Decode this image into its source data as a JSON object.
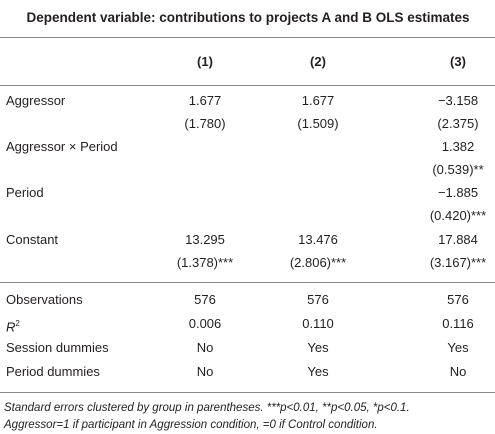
{
  "title": "Dependent variable: contributions to projects A and B OLS estimates",
  "columns": [
    "(1)",
    "(2)",
    "(3)"
  ],
  "estimates": [
    {
      "label": "Aggressor",
      "cells": [
        {
          "est": "1.677",
          "se": "(1.780)"
        },
        {
          "est": "1.677",
          "se": "(1.509)"
        },
        {
          "est": "−3.158",
          "se": "(2.375)"
        }
      ]
    },
    {
      "label": "Aggressor × Period",
      "cells": [
        null,
        null,
        {
          "est": "1.382",
          "se": "(0.539)**"
        }
      ]
    },
    {
      "label": "Period",
      "cells": [
        null,
        null,
        {
          "est": "−1.885",
          "se": "(0.420)***"
        }
      ]
    },
    {
      "label": "Constant",
      "cells": [
        {
          "est": "13.295",
          "se": "(1.378)***"
        },
        {
          "est": "13.476",
          "se": "(2.806)***"
        },
        {
          "est": "17.884",
          "se": "(3.167)***"
        }
      ]
    }
  ],
  "stats": [
    {
      "label": "Observations",
      "cells": [
        "576",
        "576",
        "576"
      ]
    },
    {
      "label": "R",
      "sup": "2",
      "cells": [
        "0.006",
        "0.110",
        "0.116"
      ]
    },
    {
      "label": "Session dummies",
      "cells": [
        "No",
        "Yes",
        "Yes"
      ]
    },
    {
      "label": "Period dummies",
      "cells": [
        "No",
        "Yes",
        "No"
      ]
    }
  ],
  "footnote": [
    "Standard errors clustered by group in parentheses. ***p<0.01, **p<0.05, *p<0.1.",
    "Aggressor=1 if participant in Aggression condition, =0 if Control condition."
  ]
}
